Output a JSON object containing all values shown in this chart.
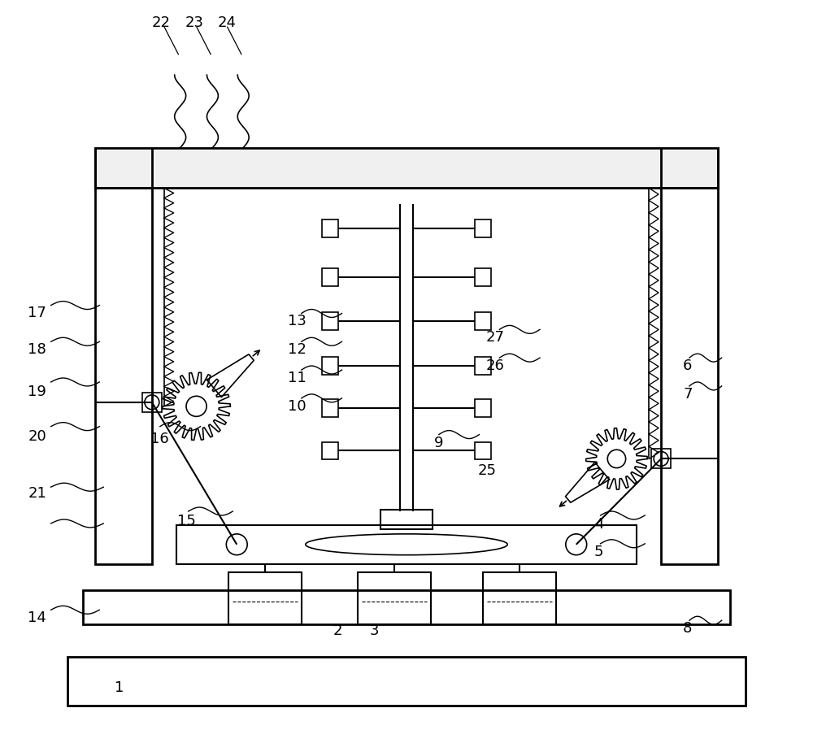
{
  "bg_color": "#ffffff",
  "line_color": "#000000",
  "fig_width": 10.0,
  "fig_height": 9.3
}
